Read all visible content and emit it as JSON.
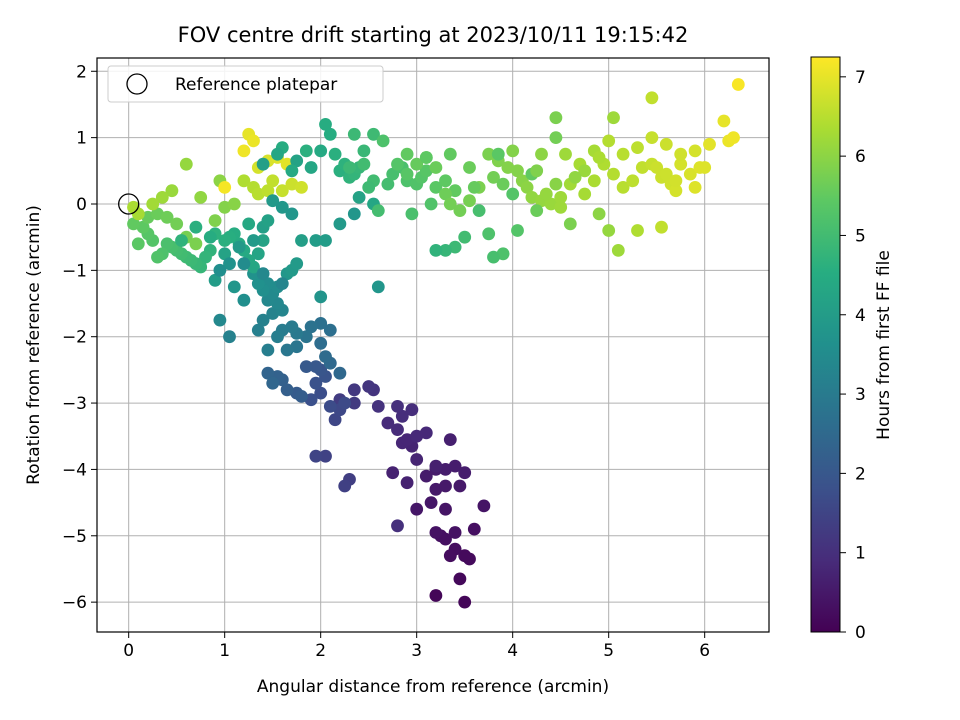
{
  "chart_data": {
    "type": "scatter",
    "title": "FOV centre drift starting at 2023/10/11 19:15:42",
    "xlabel": "Angular distance from reference (arcmin)",
    "ylabel": "Rotation from reference (arcmin)",
    "xlim": [
      -0.33,
      6.67
    ],
    "ylim": [
      -6.45,
      2.2
    ],
    "xticks": [
      "0",
      "1",
      "2",
      "3",
      "4",
      "5",
      "6"
    ],
    "yticks": [
      "2",
      "1",
      "0",
      "−1",
      "−2",
      "−3",
      "−4",
      "−5",
      "−6"
    ],
    "grid": true,
    "legend": {
      "position": "top-left",
      "entries": [
        "Reference platepar"
      ]
    },
    "reference_point": {
      "x": 0,
      "y": 0
    },
    "colorbar": {
      "label": "Hours from first FF file",
      "colormap": "viridis",
      "range": [
        0,
        7.25
      ],
      "ticks": [
        "0",
        "1",
        "2",
        "3",
        "4",
        "5",
        "6",
        "7"
      ]
    },
    "points": [
      [
        3.5,
        -6.0,
        0.1
      ],
      [
        3.2,
        -5.9,
        0.1
      ],
      [
        3.45,
        -5.65,
        0.15
      ],
      [
        3.55,
        -5.35,
        0.2
      ],
      [
        3.5,
        -5.3,
        0.2
      ],
      [
        3.4,
        -5.2,
        0.25
      ],
      [
        3.35,
        -5.3,
        0.25
      ],
      [
        3.3,
        -5.05,
        0.3
      ],
      [
        3.25,
        -5.0,
        0.3
      ],
      [
        3.6,
        -4.9,
        0.3
      ],
      [
        3.2,
        -4.95,
        0.35
      ],
      [
        3.4,
        -4.95,
        0.35
      ],
      [
        3.7,
        -4.55,
        0.4
      ],
      [
        3.3,
        -4.6,
        0.4
      ],
      [
        3.0,
        -4.6,
        0.45
      ],
      [
        3.15,
        -4.5,
        0.45
      ],
      [
        3.2,
        -4.3,
        0.5
      ],
      [
        3.3,
        -4.25,
        0.5
      ],
      [
        3.45,
        -4.25,
        0.5
      ],
      [
        3.1,
        -4.1,
        0.55
      ],
      [
        3.2,
        -4.0,
        0.55
      ],
      [
        3.3,
        -4.0,
        0.6
      ],
      [
        3.4,
        -3.95,
        0.6
      ],
      [
        3.5,
        -4.05,
        0.6
      ],
      [
        3.2,
        -3.95,
        0.65
      ],
      [
        3.35,
        -3.55,
        0.65
      ],
      [
        2.9,
        -4.2,
        0.7
      ],
      [
        2.75,
        -4.05,
        0.7
      ],
      [
        3.0,
        -3.85,
        0.75
      ],
      [
        2.95,
        -3.65,
        0.75
      ],
      [
        2.85,
        -3.6,
        0.8
      ],
      [
        2.9,
        -3.55,
        0.8
      ],
      [
        3.0,
        -3.5,
        0.85
      ],
      [
        3.1,
        -3.45,
        0.85
      ],
      [
        2.8,
        -3.4,
        0.9
      ],
      [
        2.7,
        -3.3,
        0.9
      ],
      [
        2.85,
        -3.2,
        0.95
      ],
      [
        2.95,
        -3.1,
        0.95
      ],
      [
        2.8,
        -4.85,
        1.0
      ],
      [
        2.8,
        -3.05,
        1.0
      ],
      [
        2.6,
        -3.05,
        1.05
      ],
      [
        2.55,
        -2.8,
        1.1
      ],
      [
        2.5,
        -2.75,
        1.15
      ],
      [
        2.35,
        -2.8,
        1.2
      ],
      [
        2.35,
        -3.0,
        1.25
      ],
      [
        2.2,
        -2.95,
        1.3
      ],
      [
        2.3,
        -4.15,
        1.35
      ],
      [
        2.25,
        -4.25,
        1.4
      ],
      [
        2.05,
        -3.8,
        1.45
      ],
      [
        1.95,
        -3.8,
        1.5
      ],
      [
        2.15,
        -3.25,
        1.55
      ],
      [
        2.2,
        -3.1,
        1.6
      ],
      [
        2.25,
        -3.0,
        1.65
      ],
      [
        2.1,
        -3.05,
        1.7
      ],
      [
        2.0,
        -2.85,
        1.75
      ],
      [
        1.9,
        -2.95,
        1.8
      ],
      [
        1.95,
        -2.7,
        1.85
      ],
      [
        2.05,
        -2.6,
        1.9
      ],
      [
        2.0,
        -2.5,
        1.95
      ],
      [
        1.95,
        -2.45,
        2.0
      ],
      [
        1.85,
        -2.45,
        2.05
      ],
      [
        1.75,
        -2.85,
        2.1
      ],
      [
        1.8,
        -2.9,
        2.15
      ],
      [
        1.65,
        -2.8,
        2.2
      ],
      [
        1.6,
        -2.65,
        2.25
      ],
      [
        1.55,
        -2.6,
        2.3
      ],
      [
        1.45,
        -2.55,
        2.35
      ],
      [
        1.5,
        -2.7,
        2.4
      ],
      [
        2.2,
        -2.55,
        2.45
      ],
      [
        2.1,
        -2.4,
        2.5
      ],
      [
        2.05,
        -2.3,
        2.55
      ],
      [
        2.0,
        -2.1,
        2.6
      ],
      [
        2.1,
        -1.9,
        2.65
      ],
      [
        2.0,
        -1.8,
        2.7
      ],
      [
        1.9,
        -1.85,
        2.75
      ],
      [
        1.85,
        -2.0,
        2.8
      ],
      [
        1.75,
        -2.15,
        2.85
      ],
      [
        1.65,
        -2.2,
        2.9
      ],
      [
        1.75,
        -1.95,
        2.95
      ],
      [
        1.7,
        -1.85,
        3.0
      ],
      [
        1.6,
        -1.9,
        3.05
      ],
      [
        1.55,
        -2.0,
        3.1
      ],
      [
        1.45,
        -2.2,
        3.1
      ],
      [
        1.35,
        -1.9,
        3.15
      ],
      [
        1.4,
        -1.75,
        3.2
      ],
      [
        1.5,
        -1.65,
        3.25
      ],
      [
        1.6,
        -1.6,
        3.3
      ],
      [
        1.55,
        -1.5,
        3.35
      ],
      [
        1.45,
        -1.45,
        3.4
      ],
      [
        1.5,
        -1.35,
        3.45
      ],
      [
        1.55,
        -1.25,
        3.5
      ],
      [
        1.45,
        -1.2,
        3.55
      ],
      [
        1.4,
        -1.3,
        3.6
      ],
      [
        1.35,
        -1.2,
        3.65
      ],
      [
        1.3,
        -1.05,
        3.7
      ],
      [
        2.0,
        -1.4,
        3.75
      ],
      [
        2.6,
        -1.25,
        3.8
      ],
      [
        1.65,
        -1.05,
        3.85
      ],
      [
        1.7,
        -1.0,
        3.9
      ],
      [
        1.75,
        -0.9,
        3.95
      ],
      [
        1.95,
        -0.55,
        4.0
      ],
      [
        1.8,
        -0.55,
        4.05
      ],
      [
        1.4,
        -0.35,
        4.1
      ],
      [
        1.45,
        -0.25,
        4.15
      ],
      [
        1.4,
        -0.55,
        4.2
      ],
      [
        1.35,
        -0.75,
        4.25
      ],
      [
        1.3,
        -0.95,
        4.3
      ],
      [
        1.25,
        -0.85,
        4.35
      ],
      [
        1.2,
        -0.7,
        4.4
      ],
      [
        1.15,
        -0.6,
        4.45
      ],
      [
        1.1,
        -0.45,
        4.5
      ],
      [
        1.05,
        -0.5,
        4.55
      ],
      [
        1.0,
        -0.55,
        4.6
      ],
      [
        0.9,
        -0.45,
        4.65
      ],
      [
        0.85,
        -0.7,
        4.7
      ],
      [
        0.8,
        -0.8,
        4.75
      ],
      [
        0.75,
        -0.95,
        4.8
      ],
      [
        0.7,
        -0.9,
        4.85
      ],
      [
        0.65,
        -0.85,
        4.9
      ],
      [
        0.6,
        -0.8,
        4.95
      ],
      [
        0.55,
        -0.75,
        5.0
      ],
      [
        0.5,
        -0.7,
        5.05
      ],
      [
        0.45,
        -0.65,
        5.1
      ],
      [
        0.4,
        -0.6,
        5.15
      ],
      [
        0.35,
        -0.75,
        5.2
      ],
      [
        0.3,
        -0.8,
        5.25
      ],
      [
        0.25,
        -0.55,
        5.3
      ],
      [
        0.2,
        -0.45,
        5.35
      ],
      [
        0.1,
        -0.6,
        5.4
      ],
      [
        0.15,
        -0.35,
        5.45
      ],
      [
        0.05,
        -0.3,
        5.5
      ],
      [
        0.2,
        -0.2,
        5.55
      ],
      [
        0.3,
        -0.15,
        5.6
      ],
      [
        0.4,
        -0.2,
        5.65
      ],
      [
        0.5,
        -0.3,
        5.7
      ],
      [
        0.6,
        -0.5,
        5.75
      ],
      [
        0.7,
        -0.6,
        5.8
      ],
      [
        0.9,
        -0.25,
        5.85
      ],
      [
        1.0,
        -0.05,
        5.9
      ],
      [
        1.1,
        0.0,
        5.95
      ],
      [
        0.95,
        0.35,
        6.0
      ],
      [
        0.75,
        0.1,
        6.05
      ],
      [
        0.6,
        0.6,
        6.1
      ],
      [
        0.45,
        0.2,
        6.15
      ],
      [
        0.35,
        0.1,
        6.2
      ],
      [
        0.25,
        0.0,
        6.25
      ],
      [
        0.1,
        -0.15,
        6.3
      ],
      [
        0.05,
        -0.05,
        6.35
      ],
      [
        1.2,
        0.35,
        6.4
      ],
      [
        1.3,
        0.25,
        6.45
      ],
      [
        1.35,
        0.15,
        6.5
      ],
      [
        1.45,
        0.2,
        6.55
      ],
      [
        1.5,
        0.35,
        6.6
      ],
      [
        1.6,
        0.2,
        6.65
      ],
      [
        1.7,
        0.3,
        6.7
      ],
      [
        1.8,
        0.25,
        6.75
      ],
      [
        1.35,
        0.55,
        6.8
      ],
      [
        1.45,
        0.65,
        6.85
      ],
      [
        1.55,
        0.7,
        6.9
      ],
      [
        1.65,
        0.6,
        6.95
      ],
      [
        1.25,
        1.05,
        7.0
      ],
      [
        1.3,
        0.95,
        7.05
      ],
      [
        1.2,
        0.8,
        7.1
      ],
      [
        1.0,
        0.25,
        7.15
      ],
      [
        6.35,
        1.8,
        7.2
      ],
      [
        1.75,
        0.65,
        4.2
      ],
      [
        1.9,
        0.55,
        4.3
      ],
      [
        2.0,
        0.8,
        4.4
      ],
      [
        2.05,
        1.2,
        4.5
      ],
      [
        2.1,
        1.05,
        4.5
      ],
      [
        2.15,
        0.75,
        4.6
      ],
      [
        2.2,
        0.5,
        4.6
      ],
      [
        2.25,
        0.6,
        4.65
      ],
      [
        2.3,
        0.4,
        4.7
      ],
      [
        2.35,
        0.45,
        4.75
      ],
      [
        2.4,
        0.55,
        4.8
      ],
      [
        2.45,
        0.8,
        4.85
      ],
      [
        2.35,
        1.05,
        4.9
      ],
      [
        2.55,
        1.05,
        4.95
      ],
      [
        2.55,
        0.35,
        5.0
      ],
      [
        2.7,
        0.3,
        5.05
      ],
      [
        2.75,
        0.45,
        5.1
      ],
      [
        2.85,
        0.55,
        5.15
      ],
      [
        2.9,
        0.35,
        5.2
      ],
      [
        3.0,
        0.3,
        5.25
      ],
      [
        3.05,
        0.4,
        5.3
      ],
      [
        3.1,
        0.5,
        5.35
      ],
      [
        3.2,
        0.25,
        5.4
      ],
      [
        3.3,
        0.35,
        5.45
      ],
      [
        3.4,
        0.2,
        5.5
      ],
      [
        2.9,
        0.75,
        5.5
      ],
      [
        3.0,
        0.6,
        5.55
      ],
      [
        3.1,
        0.7,
        5.6
      ],
      [
        3.2,
        0.55,
        5.6
      ],
      [
        3.3,
        0.15,
        5.65
      ],
      [
        3.35,
        0.0,
        5.7
      ],
      [
        3.45,
        -0.1,
        5.7
      ],
      [
        3.55,
        0.05,
        5.75
      ],
      [
        3.65,
        0.25,
        5.8
      ],
      [
        3.75,
        0.75,
        5.8
      ],
      [
        3.85,
        0.65,
        5.85
      ],
      [
        3.95,
        0.55,
        5.9
      ],
      [
        4.05,
        0.5,
        5.9
      ],
      [
        4.1,
        0.35,
        5.95
      ],
      [
        4.15,
        0.25,
        6.0
      ],
      [
        4.2,
        0.1,
        6.05
      ],
      [
        4.3,
        0.05,
        6.1
      ],
      [
        4.4,
        0.0,
        6.15
      ],
      [
        4.5,
        0.1,
        6.2
      ],
      [
        4.6,
        0.3,
        6.25
      ],
      [
        4.75,
        0.15,
        6.3
      ],
      [
        4.85,
        0.35,
        6.35
      ],
      [
        4.95,
        0.6,
        6.4
      ],
      [
        5.05,
        0.45,
        6.45
      ],
      [
        5.15,
        0.25,
        6.5
      ],
      [
        5.25,
        0.35,
        6.55
      ],
      [
        5.35,
        0.55,
        6.6
      ],
      [
        5.45,
        0.6,
        6.65
      ],
      [
        5.55,
        0.4,
        6.7
      ],
      [
        5.65,
        0.3,
        6.75
      ],
      [
        5.75,
        0.6,
        6.8
      ],
      [
        5.85,
        0.45,
        6.85
      ],
      [
        5.95,
        0.55,
        6.9
      ],
      [
        6.05,
        0.9,
        6.95
      ],
      [
        6.2,
        1.25,
        7.0
      ],
      [
        6.25,
        0.95,
        7.05
      ],
      [
        6.3,
        1.0,
        7.1
      ],
      [
        5.45,
        1.6,
        6.6
      ],
      [
        5.05,
        1.3,
        6.2
      ],
      [
        4.45,
        1.3,
        5.8
      ],
      [
        4.45,
        1.0,
        5.7
      ],
      [
        4.2,
        0.45,
        5.5
      ],
      [
        4.0,
        0.15,
        5.3
      ],
      [
        3.85,
        0.75,
        5.4
      ],
      [
        3.75,
        -0.45,
        5.2
      ],
      [
        3.65,
        -0.1,
        5.1
      ],
      [
        3.5,
        -0.5,
        5.0
      ],
      [
        3.4,
        -0.65,
        4.9
      ],
      [
        3.3,
        -0.7,
        4.8
      ],
      [
        3.2,
        -0.7,
        4.7
      ],
      [
        2.55,
        0.0,
        4.3
      ],
      [
        2.4,
        0.1,
        4.2
      ],
      [
        2.05,
        -0.55,
        4.0
      ],
      [
        2.2,
        -0.3,
        3.9
      ],
      [
        2.35,
        -0.15,
        3.8
      ],
      [
        4.05,
        -0.4,
        5.3
      ],
      [
        3.9,
        -0.75,
        5.2
      ],
      [
        3.8,
        -0.8,
        5.1
      ],
      [
        4.25,
        -0.1,
        5.6
      ],
      [
        4.6,
        -0.3,
        5.8
      ],
      [
        4.9,
        -0.15,
        6.0
      ],
      [
        5.0,
        -0.4,
        6.1
      ],
      [
        5.1,
        -0.7,
        6.2
      ],
      [
        5.3,
        -0.4,
        6.4
      ],
      [
        5.55,
        -0.35,
        6.6
      ],
      [
        5.7,
        0.2,
        6.8
      ],
      [
        5.9,
        0.25,
        6.9
      ],
      [
        4.7,
        0.6,
        6.3
      ],
      [
        4.55,
        0.75,
        6.2
      ],
      [
        4.3,
        0.75,
        6.0
      ],
      [
        4.0,
        0.8,
        5.9
      ],
      [
        3.8,
        0.4,
        5.7
      ],
      [
        3.55,
        0.55,
        5.6
      ],
      [
        3.35,
        0.75,
        5.5
      ],
      [
        3.1,
        0.7,
        5.45
      ],
      [
        2.9,
        0.45,
        5.35
      ],
      [
        2.8,
        0.6,
        5.3
      ],
      [
        2.65,
        0.95,
        5.2
      ],
      [
        2.45,
        0.6,
        5.0
      ],
      [
        2.3,
        0.55,
        4.9
      ],
      [
        1.85,
        0.8,
        4.6
      ],
      [
        1.7,
        0.5,
        4.4
      ],
      [
        1.6,
        0.85,
        4.5
      ],
      [
        1.55,
        0.75,
        4.3
      ],
      [
        1.4,
        0.6,
        4.1
      ],
      [
        0.7,
        -0.35,
        4.6
      ],
      [
        0.55,
        -0.55,
        4.7
      ],
      [
        0.85,
        -0.5,
        4.5
      ],
      [
        1.25,
        -0.3,
        4.35
      ],
      [
        1.0,
        -0.75,
        4.2
      ],
      [
        0.9,
        -1.15,
        4.0
      ],
      [
        1.1,
        -1.25,
        3.8
      ],
      [
        1.2,
        -1.45,
        3.6
      ],
      [
        0.95,
        -1.75,
        3.4
      ],
      [
        1.05,
        -2.0,
        3.2
      ],
      [
        4.85,
        0.8,
        6.3
      ],
      [
        4.9,
        0.7,
        6.35
      ],
      [
        5.0,
        0.95,
        6.45
      ],
      [
        5.15,
        0.75,
        6.5
      ],
      [
        5.3,
        0.85,
        6.55
      ],
      [
        5.45,
        1.0,
        6.65
      ],
      [
        5.6,
        0.9,
        6.7
      ],
      [
        5.75,
        0.75,
        6.75
      ],
      [
        5.9,
        0.8,
        6.8
      ],
      [
        6.0,
        0.55,
        6.9
      ],
      [
        4.75,
        0.5,
        6.15
      ],
      [
        4.65,
        0.4,
        6.05
      ],
      [
        4.45,
        0.3,
        5.95
      ],
      [
        4.25,
        0.5,
        5.85
      ],
      [
        3.9,
        0.3,
        5.6
      ],
      [
        3.6,
        0.25,
        5.55
      ],
      [
        3.15,
        0.0,
        5.25
      ],
      [
        2.95,
        -0.15,
        5.15
      ],
      [
        2.6,
        -0.1,
        5.05
      ],
      [
        2.5,
        0.25,
        4.95
      ],
      [
        5.5,
        0.55,
        6.7
      ],
      [
        5.6,
        0.45,
        6.72
      ],
      [
        5.7,
        0.35,
        6.78
      ],
      [
        4.35,
        0.15,
        6.1
      ],
      [
        4.5,
        -0.05,
        6.2
      ],
      [
        1.5,
        0.05,
        3.9
      ],
      [
        1.6,
        -0.05,
        3.85
      ],
      [
        1.7,
        -0.15,
        3.8
      ],
      [
        1.3,
        -0.55,
        3.95
      ],
      [
        1.15,
        -0.65,
        3.9
      ],
      [
        1.05,
        -0.9,
        3.7
      ],
      [
        0.95,
        -1.0,
        3.6
      ],
      [
        1.2,
        -0.9,
        3.5
      ],
      [
        1.4,
        -1.05,
        3.4
      ],
      [
        1.6,
        -1.2,
        3.3
      ]
    ]
  }
}
